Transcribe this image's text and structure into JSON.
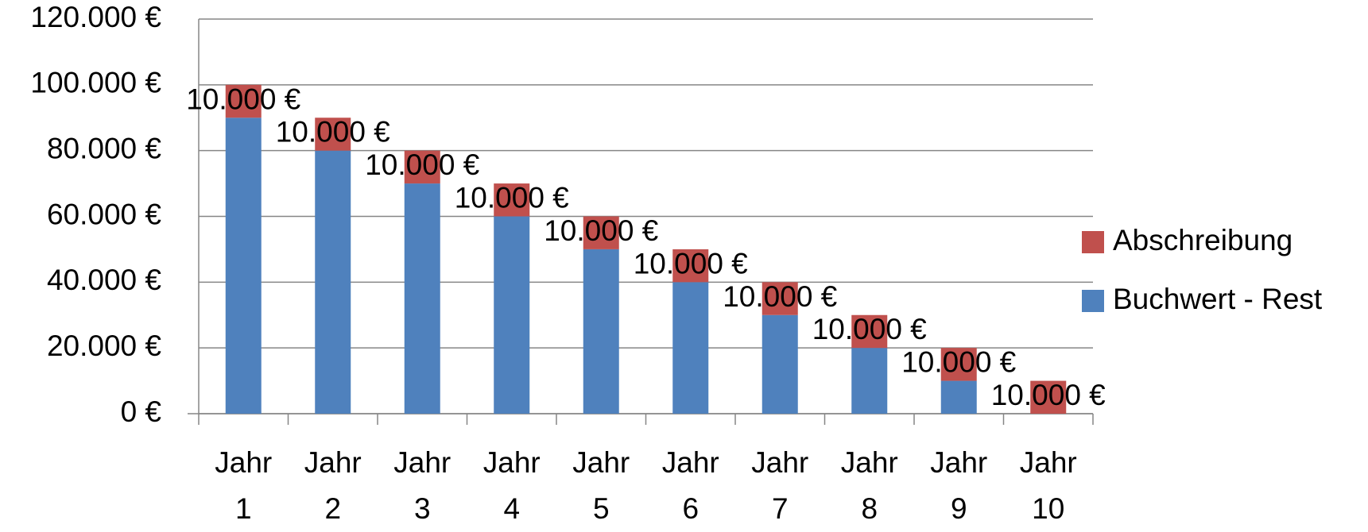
{
  "chart_data": {
    "type": "stacked_bar",
    "categories": [
      "Jahr 1",
      "Jahr 2",
      "Jahr 3",
      "Jahr 4",
      "Jahr 5",
      "Jahr 6",
      "Jahr 7",
      "Jahr 8",
      "Jahr 9",
      "Jahr 10"
    ],
    "series": [
      {
        "name": "Buchwert - Rest",
        "color": "#4f81bd",
        "values": [
          90000,
          80000,
          70000,
          60000,
          50000,
          40000,
          30000,
          20000,
          10000,
          0
        ]
      },
      {
        "name": "Abschreibung",
        "color": "#c0504d",
        "values": [
          10000,
          10000,
          10000,
          10000,
          10000,
          10000,
          10000,
          10000,
          10000,
          10000
        ],
        "value_labels": [
          "10.000 €",
          "10.000 €",
          "10.000 €",
          "10.000 €",
          "10.000 €",
          "10.000 €",
          "10.000 €",
          "10.000 €",
          "10.000 €",
          "10.000 €"
        ]
      }
    ],
    "ylim": [
      0,
      120000
    ],
    "yticks": [
      {
        "value": 0,
        "label": "0 €"
      },
      {
        "value": 20000,
        "label": "20.000 €"
      },
      {
        "value": 40000,
        "label": "40.000 €"
      },
      {
        "value": 60000,
        "label": "60.000 €"
      },
      {
        "value": 80000,
        "label": "80.000 €"
      },
      {
        "value": 100000,
        "label": "100.000 €"
      },
      {
        "value": 120000,
        "label": "120.000 €"
      }
    ],
    "grid": true,
    "legend": "right"
  }
}
